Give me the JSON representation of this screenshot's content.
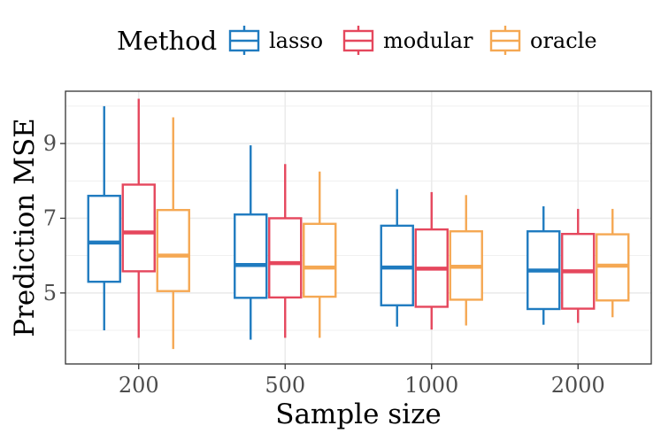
{
  "chart_data": {
    "type": "boxplot",
    "xlabel": "Sample size",
    "ylabel": "Prediction MSE",
    "categories": [
      "200",
      "500",
      "1000",
      "2000"
    ],
    "yticks": [
      5,
      7,
      9
    ],
    "ylim": [
      3.1,
      10.4
    ],
    "grid": true,
    "legend": {
      "title": "Method",
      "position": "top"
    },
    "series": [
      {
        "name": "lasso",
        "color": "#1f7bc0",
        "boxes": [
          {
            "whisker_low": 4.0,
            "q1": 5.3,
            "median": 6.35,
            "q3": 7.6,
            "whisker_high": 10.0
          },
          {
            "whisker_low": 3.75,
            "q1": 4.87,
            "median": 5.75,
            "q3": 7.1,
            "whisker_high": 8.95
          },
          {
            "whisker_low": 4.1,
            "q1": 4.67,
            "median": 5.68,
            "q3": 6.8,
            "whisker_high": 7.78
          },
          {
            "whisker_low": 4.15,
            "q1": 4.57,
            "median": 5.6,
            "q3": 6.65,
            "whisker_high": 7.32
          }
        ]
      },
      {
        "name": "modular",
        "color": "#e5475d",
        "boxes": [
          {
            "whisker_low": 3.8,
            "q1": 5.58,
            "median": 6.62,
            "q3": 7.9,
            "whisker_high": 10.2
          },
          {
            "whisker_low": 3.8,
            "q1": 4.88,
            "median": 5.8,
            "q3": 7.0,
            "whisker_high": 8.45
          },
          {
            "whisker_low": 4.02,
            "q1": 4.63,
            "median": 5.65,
            "q3": 6.7,
            "whisker_high": 7.7
          },
          {
            "whisker_low": 4.2,
            "q1": 4.58,
            "median": 5.58,
            "q3": 6.58,
            "whisker_high": 7.25
          }
        ]
      },
      {
        "name": "oracle",
        "color": "#f5a853",
        "boxes": [
          {
            "whisker_low": 3.5,
            "q1": 5.05,
            "median": 6.0,
            "q3": 7.22,
            "whisker_high": 9.7
          },
          {
            "whisker_low": 3.8,
            "q1": 4.9,
            "median": 5.68,
            "q3": 6.85,
            "whisker_high": 8.25
          },
          {
            "whisker_low": 4.13,
            "q1": 4.82,
            "median": 5.7,
            "q3": 6.65,
            "whisker_high": 7.62
          },
          {
            "whisker_low": 4.35,
            "q1": 4.8,
            "median": 5.73,
            "q3": 6.57,
            "whisker_high": 7.25
          }
        ]
      }
    ]
  }
}
